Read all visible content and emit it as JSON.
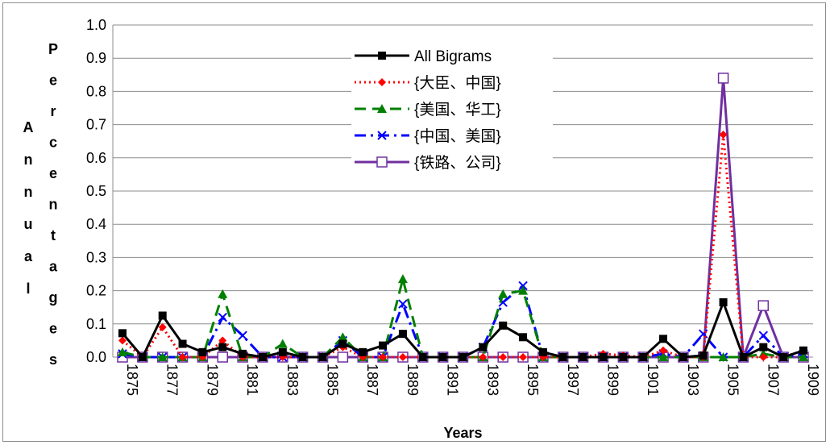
{
  "chart_data": {
    "type": "line",
    "title": "",
    "xlabel": "Years",
    "ylabel": "Annual Percentages",
    "ylim": [
      0,
      1.0
    ],
    "yticks": [
      "0.0",
      "0.1",
      "0.2",
      "0.3",
      "0.4",
      "0.5",
      "0.6",
      "0.7",
      "0.8",
      "0.9",
      "1.0"
    ],
    "x": [
      1875,
      1876,
      1877,
      1878,
      1879,
      1880,
      1881,
      1882,
      1883,
      1884,
      1885,
      1886,
      1887,
      1888,
      1889,
      1890,
      1891,
      1892,
      1893,
      1894,
      1895,
      1896,
      1897,
      1898,
      1899,
      1900,
      1901,
      1902,
      1903,
      1904,
      1905,
      1906,
      1907,
      1908,
      1909
    ],
    "xtick_labels": [
      "1875",
      "1877",
      "1879",
      "1881",
      "1883",
      "1885",
      "1887",
      "1889",
      "1891",
      "1893",
      "1895",
      "1897",
      "1899",
      "1901",
      "1903",
      "1905",
      "1907",
      "1909"
    ],
    "grid": true,
    "legend_position": "top-center",
    "series": [
      {
        "name": "All Bigrams",
        "color": "#000000",
        "line_style": "solid",
        "marker": "filled-square",
        "values": [
          0.072,
          0.0,
          0.125,
          0.04,
          0.015,
          0.03,
          0.01,
          0.0,
          0.015,
          0.0,
          0.0,
          0.04,
          0.015,
          0.035,
          0.07,
          0.0,
          0.0,
          0.0,
          0.03,
          0.095,
          0.06,
          0.015,
          0.0,
          0.0,
          0.0,
          0.0,
          0.0,
          0.055,
          0.0,
          0.005,
          0.165,
          0.0,
          0.03,
          0.0,
          0.02
        ]
      },
      {
        "name": "{大臣、中国}",
        "color": "#ff0000",
        "line_style": "dotted",
        "marker": "diamond",
        "values": [
          0.05,
          0.0,
          0.09,
          0.0,
          0.0,
          0.05,
          0.0,
          0.0,
          0.0,
          0.0,
          0.0,
          0.03,
          0.0,
          0.0,
          0.0,
          0.0,
          0.0,
          0.0,
          0.0,
          0.0,
          0.0,
          0.0,
          0.0,
          0.0,
          0.01,
          0.005,
          0.0,
          0.02,
          0.0,
          0.0,
          0.67,
          0.0,
          0.0,
          0.0,
          0.02
        ]
      },
      {
        "name": "{美国、华工}",
        "color": "#008000",
        "line_style": "dashed",
        "marker": "triangle",
        "values": [
          0.015,
          0.0,
          0.0,
          0.0,
          0.0,
          0.19,
          0.0,
          0.0,
          0.04,
          0.0,
          0.0,
          0.06,
          0.0,
          0.0,
          0.235,
          0.0,
          0.0,
          0.0,
          0.0,
          0.19,
          0.2,
          0.0,
          0.0,
          0.0,
          0.0,
          0.0,
          0.0,
          0.0,
          0.0,
          0.0,
          0.0,
          0.0,
          0.01,
          0.0,
          0.0
        ]
      },
      {
        "name": "{中国、美国}",
        "color": "#0000ff",
        "line_style": "dash-dot",
        "marker": "x",
        "values": [
          0.01,
          0.0,
          0.0,
          0.0,
          0.0,
          0.12,
          0.065,
          0.0,
          0.0,
          0.0,
          0.0,
          0.05,
          0.0,
          0.0,
          0.16,
          0.0,
          0.0,
          0.0,
          0.03,
          0.165,
          0.215,
          0.0,
          0.0,
          0.0,
          0.0,
          0.0,
          0.0,
          0.01,
          0.0,
          0.07,
          0.0,
          0.0,
          0.065,
          0.0,
          0.01
        ]
      },
      {
        "name": "{铁路、公司}",
        "color": "#7030a0",
        "line_style": "solid",
        "marker": "open-square",
        "values": [
          0.0,
          0.0,
          0.0,
          0.0,
          0.0,
          0.0,
          0.0,
          0.0,
          0.0,
          0.0,
          0.0,
          0.0,
          0.0,
          0.0,
          0.0,
          0.0,
          0.0,
          0.0,
          0.0,
          0.0,
          0.0,
          0.0,
          0.0,
          0.0,
          0.0,
          0.0,
          0.0,
          0.0,
          0.0,
          0.0,
          0.84,
          0.0,
          0.155,
          0.0,
          0.0
        ]
      }
    ]
  }
}
